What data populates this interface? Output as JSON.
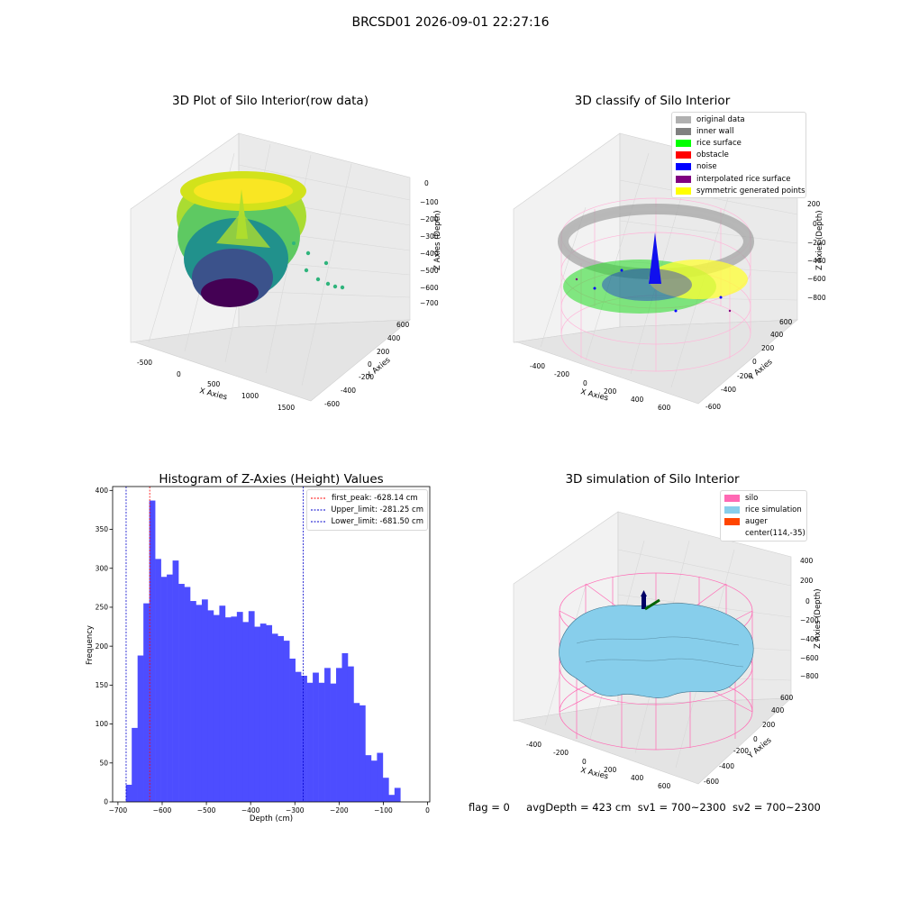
{
  "suptitle": "BRCSD01 2026-09-01 22:27:16",
  "footer": {
    "flag": "flag = 0",
    "avg_depth": "avgDepth = 423 cm",
    "sv1": "sv1 = 700~2300",
    "sv2": "sv2 = 700~2300"
  },
  "colors": {
    "hist_bar": "#4d4dff",
    "first_peak": "#ff0000",
    "limit": "#0000cc",
    "silo": "#ff69b4",
    "rice_sim": "#87ceeb",
    "auger": "#ff4500",
    "original": "#b0b0b0",
    "inner_wall": "#808080",
    "rice_surface": "#00ff00",
    "obstacle": "#ff0000",
    "noise": "#0000ff",
    "interp_surface": "#800080",
    "symmetric": "#ffff00"
  },
  "chart_data": [
    {
      "type": "scatter",
      "subtype": "3d",
      "title": "3D Plot of Silo Interior(row data)",
      "xlabel": "X Axies",
      "ylabel": "Y Axies",
      "zlabel": "Z Axies (Depth)",
      "x_ticks": [
        "-500",
        "0",
        "500",
        "1000",
        "1500"
      ],
      "y_ticks": [
        "-600",
        "-400",
        "-200",
        "0",
        "200",
        "400",
        "600"
      ],
      "z_ticks": [
        "0",
        "−100",
        "−200",
        "−300",
        "−400",
        "−500",
        "−600",
        "−700"
      ],
      "colormap": "viridis"
    },
    {
      "type": "scatter",
      "subtype": "3d",
      "title": "3D classify of Silo Interior",
      "xlabel": "X Axies",
      "ylabel": "Y Axies",
      "zlabel": "Z Axies (Depth)",
      "x_ticks": [
        "-400",
        "-200",
        "0",
        "200",
        "400",
        "600"
      ],
      "y_ticks": [
        "-600",
        "-400",
        "-200",
        "0",
        "200",
        "400",
        "600"
      ],
      "z_ticks": [
        "200",
        "0",
        "−200",
        "−400",
        "−600",
        "−800"
      ],
      "legend": [
        "original data",
        "inner wall",
        "rice surface",
        "obstacle",
        "noise",
        "interpolated rice surface",
        "symmetric generated points"
      ],
      "legend_placement": "top-right"
    },
    {
      "type": "bar",
      "subtype": "histogram",
      "title": "Histogram of Z-Axies (Height) Values",
      "xlabel": "Depth (cm)",
      "ylabel": "Frequency",
      "xlim": [
        -712,
        5
      ],
      "ylim": [
        0,
        405
      ],
      "x_ticks": [
        -700,
        -600,
        -500,
        -400,
        -300,
        -200,
        -100,
        0
      ],
      "y_ticks": [
        0,
        50,
        100,
        150,
        200,
        250,
        300,
        350,
        400
      ],
      "bin_start": -682,
      "bin_width": 13.2,
      "values": [
        22,
        95,
        188,
        255,
        387,
        312,
        289,
        292,
        310,
        280,
        276,
        258,
        253,
        260,
        246,
        240,
        252,
        237,
        238,
        244,
        231,
        245,
        225,
        229,
        227,
        216,
        213,
        207,
        184,
        167,
        162,
        153,
        166,
        153,
        172,
        152,
        172,
        191,
        174,
        127,
        124,
        60,
        53,
        63,
        31,
        9,
        18
      ],
      "lines": [
        {
          "name": "first_peak",
          "label": "first_peak: -628.14 cm",
          "x": -628.14
        },
        {
          "name": "upper",
          "label": "Upper_limit: -281.25 cm",
          "x": -281.25
        },
        {
          "name": "lower",
          "label": "Lower_limit: -681.50 cm",
          "x": -681.5
        }
      ],
      "legend_placement": "top-right"
    },
    {
      "type": "area",
      "subtype": "3d-surface",
      "title": "3D simulation of Silo Interior",
      "xlabel": "X Axies",
      "ylabel": "Y Axies",
      "zlabel": "Z Axies (Depth)",
      "x_ticks": [
        "-400",
        "-200",
        "0",
        "200",
        "400",
        "600"
      ],
      "y_ticks": [
        "-600",
        "-400",
        "-200",
        "0",
        "200",
        "400",
        "600"
      ],
      "z_ticks": [
        "400",
        "200",
        "0",
        "−200",
        "−400",
        "−600",
        "−800"
      ],
      "legend": [
        "silo",
        "rice simulation",
        "auger",
        "center(114,-35)"
      ],
      "legend_placement": "top-right"
    }
  ]
}
